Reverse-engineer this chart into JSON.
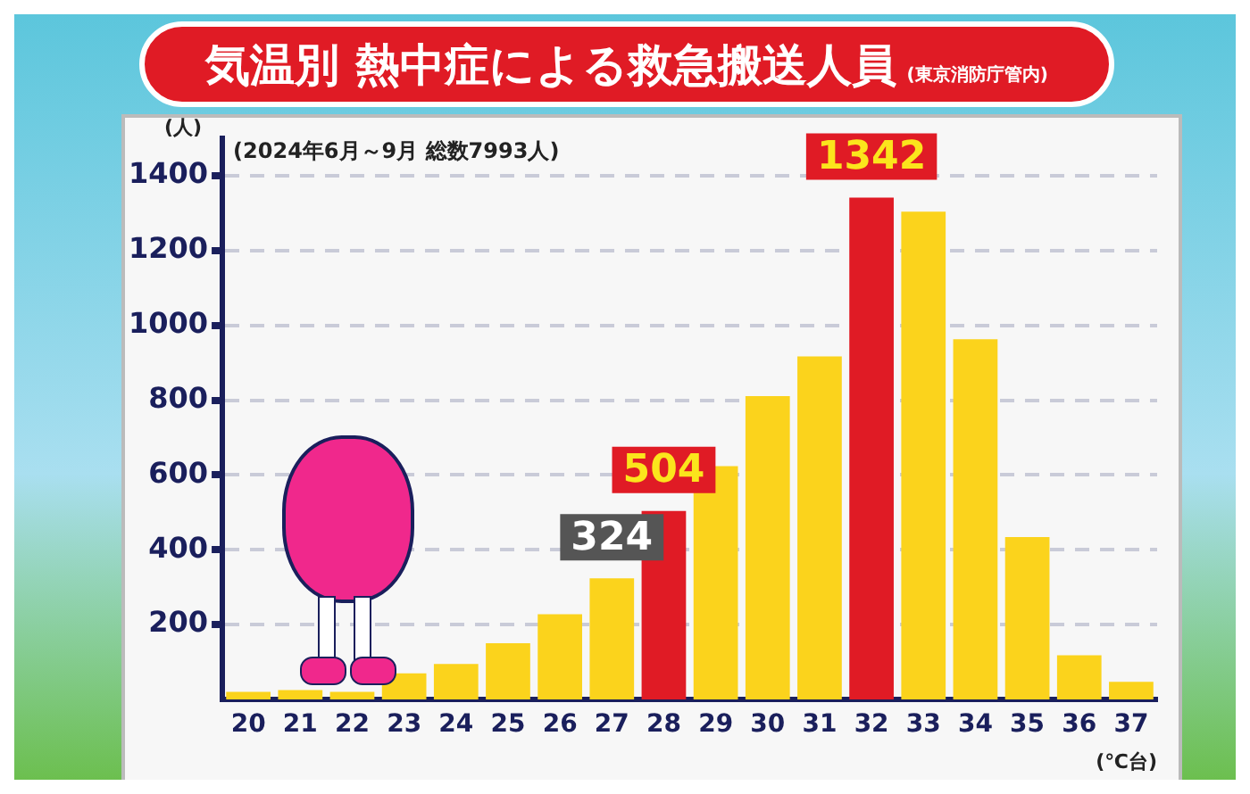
{
  "chart_data": {
    "type": "bar",
    "title": "気温別 熱中症による救急搬送人員",
    "subtitle": "(東京消防庁管内)",
    "xlabel": "(℃台)",
    "ylabel": "(人)",
    "annotations": [
      "(2024年6月～9月 総数7993人)"
    ],
    "categories": [
      "20",
      "21",
      "22",
      "23",
      "24",
      "25",
      "26",
      "27",
      "28",
      "29",
      "30",
      "31",
      "32",
      "33",
      "34",
      "35",
      "36",
      "37"
    ],
    "values": [
      20,
      25,
      20,
      70,
      95,
      150,
      228,
      324,
      504,
      624,
      811,
      917,
      1342,
      1304,
      963,
      434,
      118,
      47
    ],
    "value_labels": [
      null,
      null,
      null,
      null,
      null,
      null,
      null,
      "324",
      "504",
      null,
      null,
      null,
      "1342",
      null,
      null,
      null,
      null,
      null
    ],
    "colors": [
      "#fbd31c",
      "#fbd31c",
      "#fbd31c",
      "#fbd31c",
      "#fbd31c",
      "#fbd31c",
      "#fbd31c",
      "#fbd31c",
      "#e01b25",
      "#fbd31c",
      "#fbd31c",
      "#fbd31c",
      "#e01b25",
      "#fbd31c",
      "#fbd31c",
      "#fbd31c",
      "#fbd31c",
      "#fbd31c"
    ],
    "ylim": [
      0,
      1500
    ],
    "yticks": [
      200,
      400,
      600,
      800,
      1000,
      1200,
      1400
    ],
    "grid": "y",
    "legend": false
  }
}
